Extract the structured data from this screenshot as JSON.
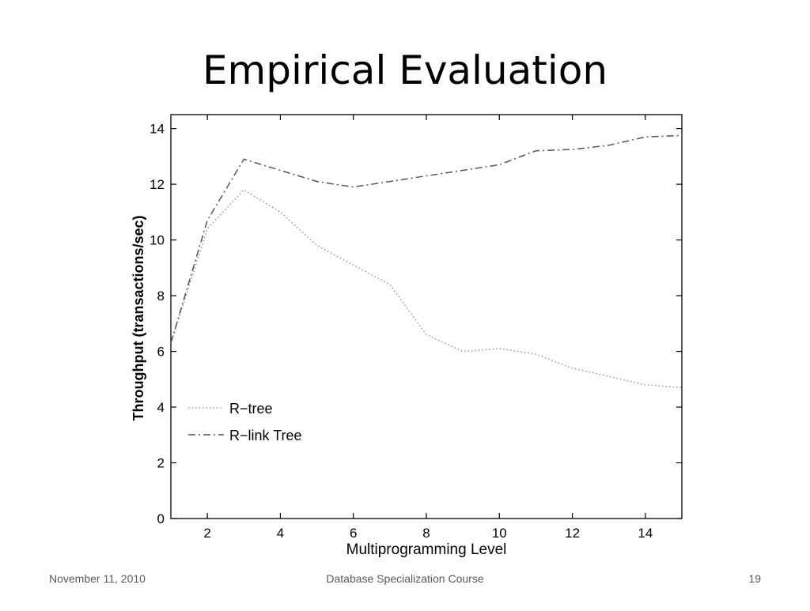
{
  "slide": {
    "title": "Empirical Evaluation"
  },
  "footer": {
    "date": "November 11, 2010",
    "course": "Database Specialization Course",
    "page_number": "19"
  },
  "chart_data": {
    "type": "line",
    "title": "",
    "xlabel": "Multiprogramming Level",
    "ylabel": "Throughput (transactions/sec)",
    "xlim": [
      1,
      15
    ],
    "ylim": [
      0,
      14.5
    ],
    "x_ticks": [
      2,
      4,
      6,
      8,
      10,
      12,
      14
    ],
    "y_ticks": [
      0,
      2,
      4,
      6,
      8,
      10,
      12,
      14
    ],
    "grid": false,
    "legend_position": "lower-left",
    "series": [
      {
        "name": "R−tree",
        "style": "dotted",
        "color": "#999999",
        "x": [
          1,
          2,
          3,
          4,
          5,
          6,
          7,
          8,
          9,
          10,
          11,
          12,
          13,
          14,
          15
        ],
        "y": [
          6.3,
          10.4,
          11.8,
          11.0,
          9.8,
          9.1,
          8.4,
          6.6,
          6.0,
          6.1,
          5.9,
          5.4,
          5.1,
          4.8,
          4.7
        ]
      },
      {
        "name": "R−link Tree",
        "style": "dashdot",
        "color": "#555555",
        "x": [
          1,
          2,
          3,
          4,
          5,
          6,
          7,
          8,
          9,
          10,
          11,
          12,
          13,
          14,
          15
        ],
        "y": [
          6.3,
          10.7,
          12.9,
          12.5,
          12.1,
          11.9,
          12.1,
          12.3,
          12.5,
          12.7,
          13.2,
          13.25,
          13.4,
          13.7,
          13.75
        ]
      }
    ]
  }
}
